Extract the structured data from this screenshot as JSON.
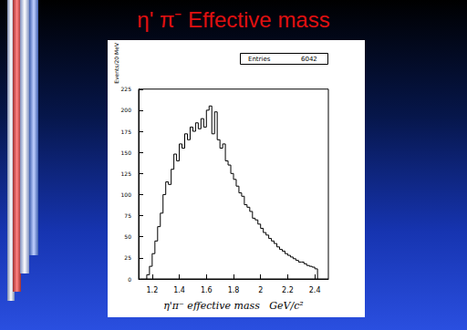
{
  "chart_data": {
    "type": "histogram",
    "title": "η' π⁻ Effective mass",
    "x_label": "η'π⁻ effective mass   GeV/c²",
    "y_label": "Events/20 MeV",
    "stats_label": "Entries",
    "entries": 6042,
    "bins": [
      1.16,
      1.18,
      1.2,
      1.22,
      1.24,
      1.26,
      1.28,
      1.3,
      1.32,
      1.34,
      1.36,
      1.38,
      1.4,
      1.42,
      1.44,
      1.46,
      1.48,
      1.5,
      1.52,
      1.54,
      1.56,
      1.58,
      1.6,
      1.62,
      1.64,
      1.66,
      1.68,
      1.7,
      1.72,
      1.74,
      1.76,
      1.78,
      1.8,
      1.82,
      1.84,
      1.86,
      1.88,
      1.9,
      1.92,
      1.94,
      1.96,
      1.98,
      2.0,
      2.02,
      2.04,
      2.06,
      2.08,
      2.1,
      2.12,
      2.14,
      2.16,
      2.18,
      2.2,
      2.22,
      2.24,
      2.26,
      2.28,
      2.3,
      2.32,
      2.34,
      2.36,
      2.38,
      2.4,
      2.42
    ],
    "values": [
      5,
      15,
      30,
      45,
      62,
      78,
      100,
      115,
      112,
      130,
      148,
      140,
      160,
      155,
      172,
      165,
      180,
      175,
      185,
      178,
      190,
      180,
      200,
      205,
      172,
      198,
      165,
      155,
      160,
      140,
      135,
      125,
      118,
      110,
      102,
      98,
      88,
      85,
      80,
      72,
      70,
      65,
      60,
      55,
      52,
      48,
      45,
      42,
      38,
      35,
      33,
      30,
      28,
      26,
      24,
      22,
      20,
      20,
      18,
      16,
      15,
      14,
      12
    ],
    "color": "#000000",
    "xlim": [
      1.1,
      2.5
    ],
    "xticks": [
      1.2,
      1.4,
      1.6,
      1.8,
      2,
      2.2,
      2.4
    ],
    "ylim": [
      0,
      225
    ],
    "yticks": [
      0,
      25,
      50,
      75,
      100,
      125,
      150,
      175,
      200,
      225
    ],
    "grid": false
  }
}
